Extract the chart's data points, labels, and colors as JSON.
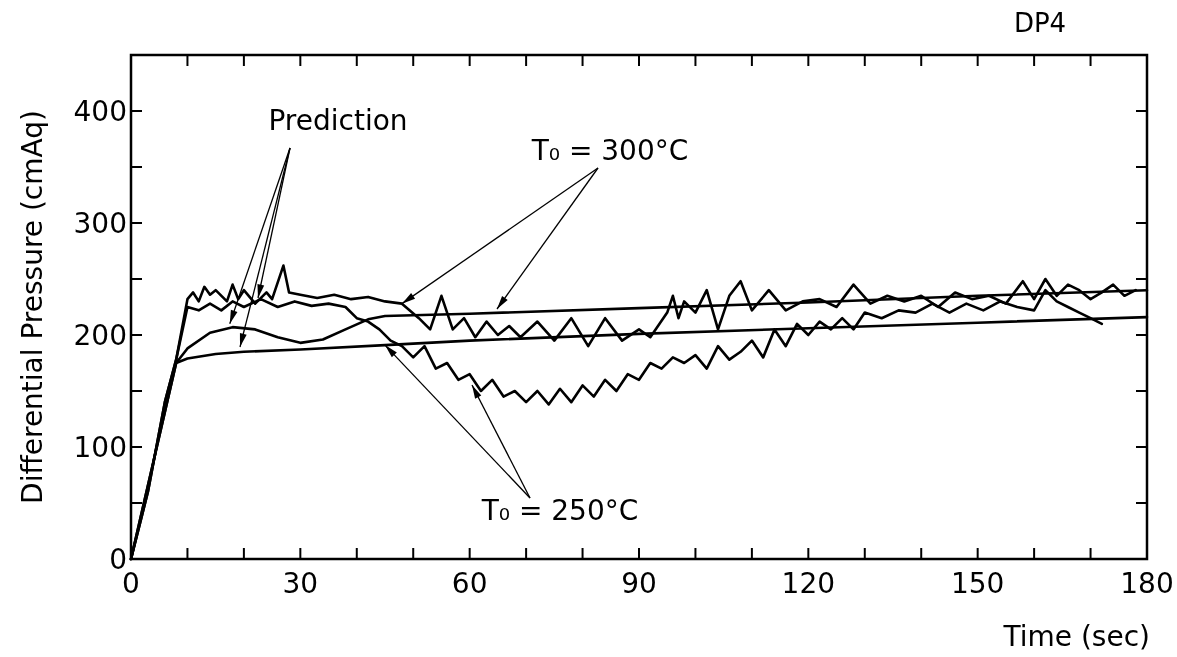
{
  "chart_data": {
    "type": "line",
    "title": "DP4",
    "xlabel": "Time (sec)",
    "ylabel": "Differential Pressure (cmAq)",
    "annotations": [
      {
        "text": "Prediction",
        "x": 17.5,
        "y": 210
      },
      {
        "text": "T₀ = 300°C",
        "x": 48,
        "y": 228
      },
      {
        "text": "T₀ = 250°C",
        "x": 45,
        "y": 191
      }
    ],
    "xlim": [
      0,
      180
    ],
    "ylim": [
      0,
      450
    ],
    "xticks": [
      0,
      {
        "value": 10,
        "label": null
      },
      {
        "value": 20,
        "label": null
      },
      30,
      {
        "value": 40,
        "label": null
      },
      {
        "value": 50,
        "label": null
      },
      60,
      {
        "value": 70,
        "label": null
      },
      {
        "value": 80,
        "label": null
      },
      90,
      {
        "value": 100,
        "label": null
      },
      {
        "value": 110,
        "label": null
      },
      120,
      {
        "value": 130,
        "label": null
      },
      {
        "value": 140,
        "label": null
      },
      150,
      {
        "value": 160,
        "label": null
      },
      {
        "value": 170,
        "label": null
      },
      180
    ],
    "yticks": [
      0,
      {
        "value": 50,
        "label": null
      },
      100,
      {
        "value": 150,
        "label": null
      },
      200,
      {
        "value": 250,
        "label": null
      },
      300,
      {
        "value": 350,
        "label": null
      },
      400
    ],
    "grid": false,
    "marker": "none",
    "line_style": "solid",
    "series": [
      {
        "color": "#000000",
        "x": [
          0,
          3,
          6,
          8,
          10,
          11,
          12,
          13,
          14,
          15,
          17,
          18,
          19,
          20,
          22,
          24,
          25,
          27,
          28,
          30,
          33,
          36,
          39,
          42,
          45,
          48,
          51,
          53,
          55,
          57,
          59,
          61,
          63,
          65,
          67,
          69,
          72,
          75,
          78,
          81,
          84,
          87,
          90,
          92,
          95,
          96,
          97,
          98,
          100,
          102,
          104,
          106,
          108,
          110,
          113,
          116,
          119,
          122,
          125,
          128,
          131,
          134,
          137,
          140,
          143,
          146,
          149,
          152,
          155,
          158,
          160,
          162,
          164,
          166,
          168,
          170,
          172,
          174,
          176,
          178
        ],
        "values": [
          0,
          60,
          140,
          178,
          232,
          238,
          230,
          243,
          236,
          240,
          230,
          245,
          232,
          240,
          228,
          238,
          232,
          262,
          238,
          236,
          233,
          236,
          232,
          234,
          230,
          228,
          215,
          205,
          235,
          205,
          215,
          198,
          212,
          200,
          208,
          198,
          212,
          195,
          215,
          190,
          215,
          195,
          205,
          198,
          220,
          235,
          215,
          230,
          220,
          240,
          205,
          235,
          248,
          222,
          240,
          222,
          230,
          232,
          225,
          245,
          228,
          235,
          230,
          235,
          225,
          238,
          232,
          235,
          228,
          248,
          232,
          250,
          235,
          245,
          240,
          232,
          238,
          245,
          235,
          240
        ]
      },
      {
        "color": "#000000",
        "x": [
          0,
          3,
          6,
          8,
          10,
          12,
          14,
          16,
          18,
          20,
          23,
          26,
          29,
          32,
          35,
          38,
          40,
          42,
          44,
          46,
          48,
          50,
          52,
          54,
          56,
          58,
          60,
          62,
          64,
          66,
          68,
          70,
          72,
          74,
          76,
          78,
          80,
          82,
          84,
          86,
          88,
          90,
          92,
          94,
          96,
          98,
          100,
          102,
          104,
          106,
          108,
          110,
          112,
          114,
          116,
          118,
          120,
          122,
          124,
          126,
          128,
          130,
          133,
          136,
          139,
          142,
          145,
          148,
          151,
          154,
          157,
          160,
          162,
          164,
          166,
          168,
          170,
          172
        ],
        "values": [
          0,
          60,
          140,
          178,
          225,
          222,
          228,
          222,
          230,
          225,
          232,
          225,
          230,
          226,
          228,
          225,
          215,
          212,
          205,
          195,
          190,
          180,
          190,
          170,
          175,
          160,
          165,
          150,
          160,
          145,
          150,
          140,
          150,
          138,
          152,
          140,
          155,
          145,
          160,
          150,
          165,
          160,
          175,
          170,
          180,
          175,
          182,
          170,
          190,
          178,
          185,
          195,
          180,
          205,
          190,
          210,
          200,
          212,
          205,
          215,
          205,
          220,
          215,
          222,
          220,
          228,
          220,
          228,
          222,
          230,
          225,
          222,
          240,
          230,
          225,
          220,
          215,
          210
        ]
      },
      {
        "color": "#000000",
        "x": [
          0,
          8,
          10,
          14,
          18,
          22,
          26,
          30,
          34,
          38,
          42,
          45,
          60,
          90,
          120,
          150,
          180
        ],
        "values": [
          0,
          175,
          188,
          202,
          207,
          205,
          198,
          193,
          196,
          205,
          214,
          217,
          219,
          224,
          229,
          235,
          240
        ]
      },
      {
        "color": "#000000",
        "x": [
          0,
          8,
          10,
          15,
          20,
          30,
          45,
          60,
          90,
          120,
          150,
          180
        ],
        "values": [
          0,
          175,
          179,
          183,
          185,
          187,
          191,
          195,
          201,
          206,
          211,
          216
        ]
      }
    ]
  }
}
